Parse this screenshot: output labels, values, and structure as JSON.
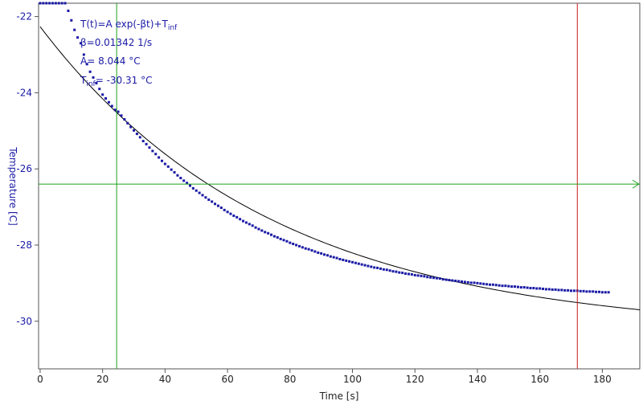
{
  "chart_data": {
    "type": "scatter",
    "xlabel": "Time [s]",
    "ylabel": "Temperature [C]",
    "xlim": [
      -0.5,
      192
    ],
    "ylim": [
      -31.25,
      -21.65
    ],
    "x_ticks": [
      0,
      20,
      40,
      60,
      80,
      100,
      120,
      140,
      160,
      180
    ],
    "x_tick_labels": [
      "0",
      "20",
      "40",
      "60",
      "80",
      "100",
      "120",
      "140",
      "160",
      "180"
    ],
    "y_ticks": [
      -22,
      -24,
      -26,
      -28,
      -30
    ],
    "y_tick_labels": [
      "-22",
      "-24",
      "-26",
      "-28",
      "-30"
    ],
    "grid": false,
    "fit": {
      "formula_text": "T(t)=A exp(-βt)+T",
      "formula_sub": "inf",
      "beta_text": "β=0.01342 1/s",
      "a_text": "A= 8.044 °C",
      "tinf_prefix": "T",
      "tinf_sub": "inf",
      "tinf_value": "= -30.31 °C",
      "A": 8.044,
      "beta": 0.01342,
      "T_inf": -30.31,
      "x_range": [
        0,
        192
      ]
    },
    "markers": {
      "vertical_green_x": 24.5,
      "vertical_red_x": 172,
      "horizontal_green_y": -26.4
    },
    "series": [
      {
        "x": [
          0.0,
          1.0,
          2.0,
          3.0,
          4.0,
          5.0,
          6.0,
          7.0,
          8.0,
          9.0,
          10.0,
          11.0,
          12.0,
          13.0,
          14.0,
          15.0,
          16.0,
          17.0,
          18.0,
          19.0,
          20.0,
          21.0,
          22.0,
          23.0,
          24.0,
          25.0,
          26.0,
          27.0,
          28.0,
          29.0,
          30.0,
          31.0,
          32.0,
          33.0,
          34.0,
          35.0,
          36.0,
          37.0,
          38.0,
          39.0,
          40.0,
          41.0,
          42.0,
          43.0,
          44.0,
          45.0,
          46.0,
          47.0,
          48.0,
          49.0,
          50.0,
          51.0,
          52.0,
          53.0,
          54.0,
          55.0,
          56.0,
          57.0,
          58.0,
          59.0,
          60.0,
          61.0,
          62.0,
          63.0,
          64.0,
          65.0,
          66.0,
          67.0,
          68.0,
          69.0,
          70.0,
          71.0,
          72.0,
          73.0,
          74.0,
          75.0,
          76.0,
          77.0,
          78.0,
          79.0,
          80.0,
          81.0,
          82.0,
          83.0,
          84.0,
          85.0,
          86.0,
          87.0,
          88.0,
          89.0,
          90.0,
          91.0,
          92.0,
          93.0,
          94.0,
          95.0,
          96.0,
          97.0,
          98.0,
          99.0,
          100.0,
          101.0,
          102.0,
          103.0,
          104.0,
          105.0,
          106.0,
          107.0,
          108.0,
          109.0,
          110.0,
          111.0,
          112.0,
          113.0,
          114.0,
          115.0,
          116.0,
          117.0,
          118.0,
          119.0,
          120.0,
          121.0,
          122.0,
          123.0,
          124.0,
          125.0,
          126.0,
          127.0,
          128.0,
          129.0,
          130.0,
          131.0,
          132.0,
          133.0,
          134.0,
          135.0,
          136.0,
          137.0,
          138.0,
          139.0,
          140.0,
          141.0,
          142.0,
          143.0,
          144.0,
          145.0,
          146.0,
          147.0,
          148.0,
          149.0,
          150.0,
          151.0,
          152.0,
          153.0,
          154.0,
          155.0,
          156.0,
          157.0,
          158.0,
          159.0,
          160.0,
          161.0,
          162.0,
          163.0,
          164.0,
          165.0,
          166.0,
          167.0,
          168.0,
          169.0,
          170.0,
          171.0,
          172.0,
          173.0,
          174.0,
          175.0,
          176.0,
          177.0,
          178.0,
          179.0,
          180.0,
          181.0,
          182.0
        ],
        "y": [
          -21.65,
          -21.65,
          -21.65,
          -21.65,
          -21.65,
          -21.65,
          -21.65,
          -21.65,
          -21.65,
          -21.85,
          -22.1,
          -22.35,
          -22.55,
          -22.7,
          -23.0,
          -23.25,
          -23.45,
          -23.6,
          -23.75,
          -23.9,
          -24.05,
          -24.15,
          -24.25,
          -24.35,
          -24.45,
          -24.5,
          -24.6,
          -24.7,
          -24.8,
          -24.9,
          -24.99,
          -25.08,
          -25.17,
          -25.27,
          -25.35,
          -25.44,
          -25.53,
          -25.61,
          -25.7,
          -25.79,
          -25.87,
          -25.94,
          -26.02,
          -26.09,
          -26.17,
          -26.24,
          -26.31,
          -26.37,
          -26.44,
          -26.51,
          -26.57,
          -26.63,
          -26.69,
          -26.75,
          -26.81,
          -26.86,
          -26.92,
          -26.97,
          -27.02,
          -27.08,
          -27.13,
          -27.18,
          -27.23,
          -27.27,
          -27.32,
          -27.37,
          -27.41,
          -27.45,
          -27.49,
          -27.54,
          -27.58,
          -27.62,
          -27.66,
          -27.69,
          -27.73,
          -27.77,
          -27.8,
          -27.84,
          -27.87,
          -27.9,
          -27.94,
          -27.97,
          -28.0,
          -28.03,
          -28.06,
          -28.09,
          -28.11,
          -28.14,
          -28.17,
          -28.2,
          -28.22,
          -28.25,
          -28.27,
          -28.3,
          -28.32,
          -28.34,
          -28.37,
          -28.39,
          -28.41,
          -28.43,
          -28.45,
          -28.47,
          -28.49,
          -28.51,
          -28.53,
          -28.55,
          -28.57,
          -28.59,
          -28.6,
          -28.62,
          -28.64,
          -28.65,
          -28.67,
          -28.69,
          -28.7,
          -28.72,
          -28.73,
          -28.75,
          -28.76,
          -28.77,
          -28.79,
          -28.8,
          -28.81,
          -28.82,
          -28.84,
          -28.85,
          -28.86,
          -28.87,
          -28.88,
          -28.9,
          -28.91,
          -28.92,
          -28.93,
          -28.94,
          -28.95,
          -28.96,
          -28.97,
          -28.98,
          -28.99,
          -28.99,
          -29.0,
          -29.01,
          -29.02,
          -29.03,
          -29.04,
          -29.04,
          -29.05,
          -29.06,
          -29.07,
          -29.07,
          -29.08,
          -29.09,
          -29.09,
          -29.1,
          -29.11,
          -29.11,
          -29.12,
          -29.13,
          -29.13,
          -29.14,
          -29.14,
          -29.15,
          -29.16,
          -29.16,
          -29.17,
          -29.17,
          -29.18,
          -29.18,
          -29.19,
          -29.19,
          -29.2,
          -29.2,
          -29.2,
          -29.21,
          -29.21,
          -29.22,
          -29.22,
          -29.22,
          -29.23,
          -29.23,
          -29.24,
          -29.24,
          -29.24
        ]
      }
    ]
  },
  "colors": {
    "data": "#1a1aa6",
    "fit": "#000000",
    "green": "#1ea01e",
    "red": "#c81e1e",
    "axis": "#555555",
    "x_title": "#222222"
  }
}
